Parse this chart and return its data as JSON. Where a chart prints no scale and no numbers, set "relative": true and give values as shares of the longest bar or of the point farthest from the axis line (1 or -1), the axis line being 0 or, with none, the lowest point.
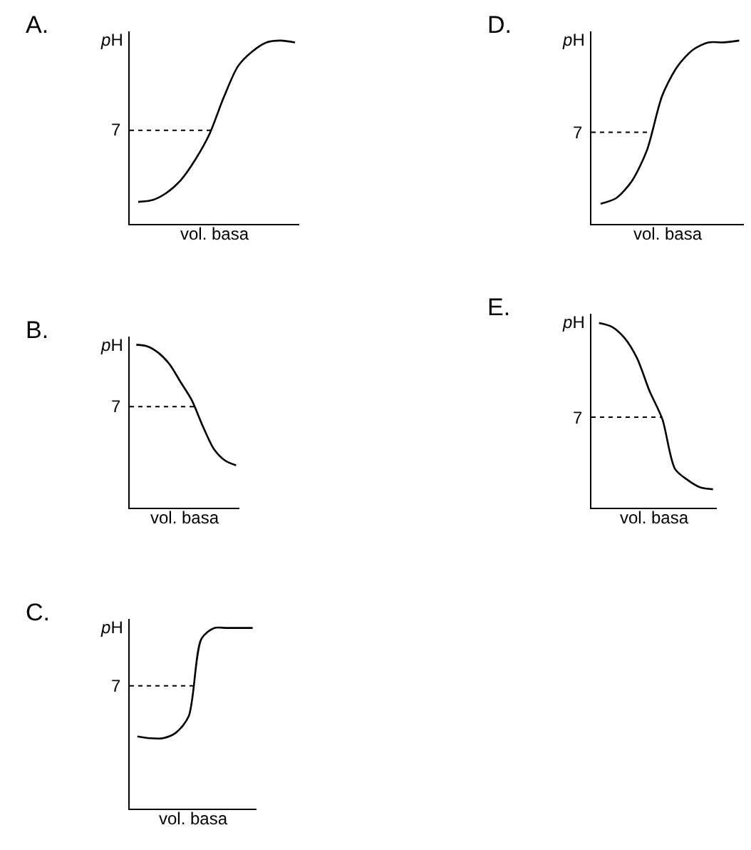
{
  "chart_data": [
    {
      "type": "line",
      "title": "A.",
      "ylabel": "pH",
      "xlabel": "vol. basa",
      "relative": true,
      "tick_labels": false,
      "categories": [
        null,
        null,
        null,
        null,
        null,
        null,
        null,
        null,
        null,
        null,
        null,
        null
      ],
      "series": [
        {
          "color": "#000000",
          "values": [
            0.12,
            0.13,
            0.17,
            0.24,
            0.35,
            0.49,
            0.69,
            0.86,
            0.94,
            0.99,
            1.0,
            0.99
          ]
        }
      ],
      "annotations": [
        "7"
      ],
      "ref_lines": [
        {
          "axis": "y",
          "value": 0.51,
          "line_style": "dotted"
        }
      ]
    },
    {
      "type": "line",
      "title": "D.",
      "ylabel": "pH",
      "xlabel": "vol. basa",
      "relative": true,
      "tick_labels": false,
      "categories": [
        null,
        null,
        null,
        null,
        null,
        null,
        null,
        null,
        null,
        null
      ],
      "series": [
        {
          "color": "#000000",
          "values": [
            0.11,
            0.14,
            0.23,
            0.4,
            0.7,
            0.86,
            0.95,
            0.99,
            0.99,
            1.0
          ]
        }
      ],
      "annotations": [
        "7"
      ],
      "ref_lines": [
        {
          "axis": "y",
          "value": 0.5,
          "line_style": "dotted"
        }
      ]
    },
    {
      "type": "line",
      "title": "B.",
      "ylabel": "pH",
      "xlabel": "vol. basa",
      "relative": true,
      "tick_labels": false,
      "categories": [
        null,
        null,
        null,
        null,
        null,
        null,
        null,
        null,
        null,
        null
      ],
      "series": [
        {
          "color": "#000000",
          "values": [
            1.0,
            0.99,
            0.95,
            0.88,
            0.77,
            0.66,
            0.5,
            0.36,
            0.29,
            0.26
          ]
        }
      ],
      "annotations": [
        "7"
      ],
      "ref_lines": [
        {
          "axis": "y",
          "value": 0.62,
          "line_style": "dotted"
        }
      ]
    },
    {
      "type": "line",
      "title": "E.",
      "ylabel": "pH",
      "xlabel": "vol. basa",
      "relative": true,
      "tick_labels": false,
      "categories": [
        null,
        null,
        null,
        null,
        null,
        null,
        null,
        null,
        null,
        null
      ],
      "series": [
        {
          "color": "#000000",
          "values": [
            1.0,
            0.98,
            0.92,
            0.81,
            0.63,
            0.48,
            0.21,
            0.15,
            0.11,
            0.1
          ]
        }
      ],
      "annotations": [
        "7"
      ],
      "ref_lines": [
        {
          "axis": "y",
          "value": 0.49,
          "line_style": "dotted"
        }
      ]
    },
    {
      "type": "line",
      "title": "C.",
      "ylabel": "pH",
      "xlabel": "vol. basa",
      "relative": true,
      "tick_labels": false,
      "categories": [
        null,
        null,
        null,
        null,
        null,
        null,
        null,
        null,
        null,
        null
      ],
      "series": [
        {
          "color": "#000000",
          "values": [
            0.4,
            0.39,
            0.39,
            0.42,
            0.51,
            0.94,
            1.0,
            1.0,
            1.0,
            1.0
          ]
        }
      ],
      "annotations": [
        "7"
      ],
      "ref_lines": [
        {
          "axis": "y",
          "value": 0.68,
          "line_style": "dotted"
        }
      ]
    }
  ]
}
